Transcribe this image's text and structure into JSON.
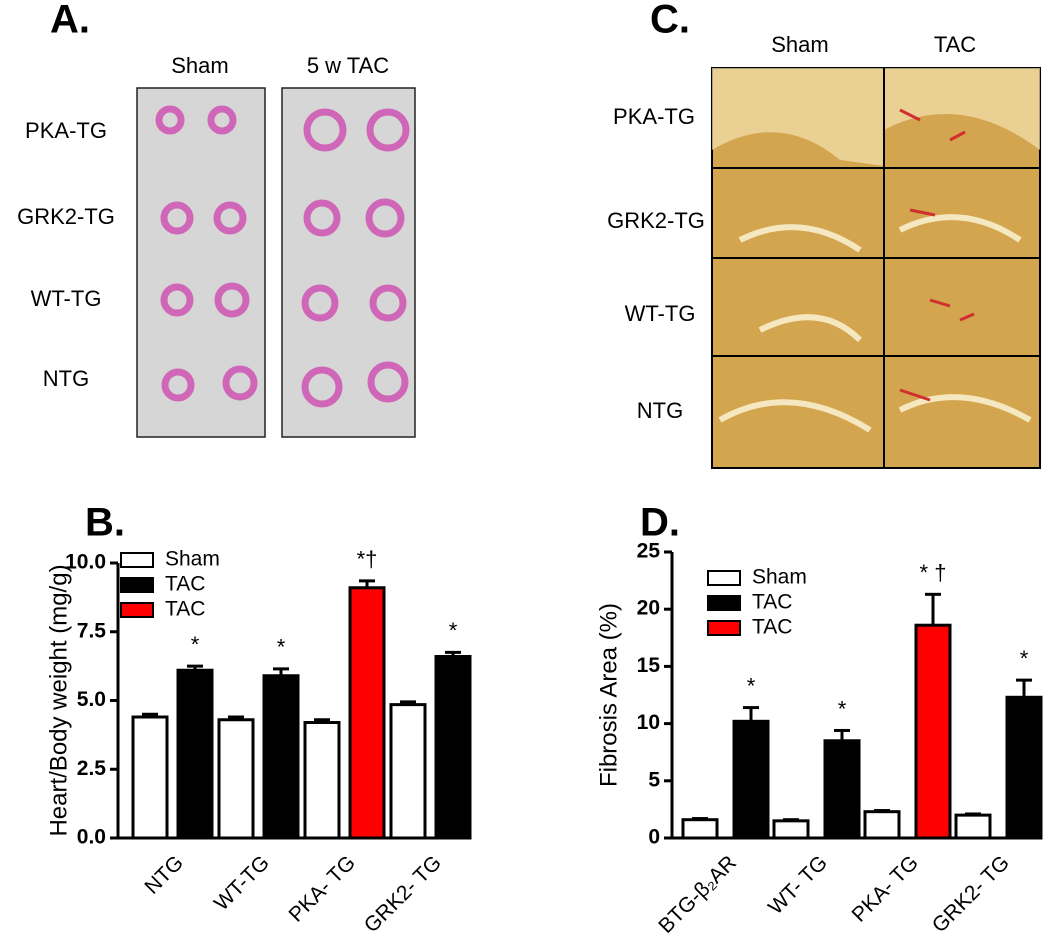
{
  "panel_a": {
    "label": "A.",
    "columns": [
      "Sham",
      "5 w TAC"
    ],
    "rows": [
      "PKA-TG",
      "GRK2-TG",
      "WT-TG",
      "NTG"
    ]
  },
  "panel_c": {
    "label": "C.",
    "columns": [
      "Sham",
      "TAC"
    ],
    "rows": [
      "PKA-TG",
      "GRK2-TG",
      "WT-TG",
      "NTG"
    ]
  },
  "chart_data": [
    {
      "type": "bar",
      "title": "B.",
      "y_label": "Heart/Body weight (mg/g)",
      "categories": [
        "NTG",
        "WT-TG",
        "PKA- TG",
        "GRK2- TG"
      ],
      "category_colors": [
        "#000000",
        "#000000",
        "#e8231b",
        "#000000"
      ],
      "series": [
        {
          "name": "Sham",
          "color": "#ffffff",
          "values": [
            4.4,
            4.3,
            4.2,
            4.85
          ],
          "errors": [
            0.1,
            0.1,
            0.1,
            0.1
          ],
          "annotations": [
            null,
            null,
            null,
            null
          ]
        },
        {
          "name": "TAC",
          "color": "#000000",
          "values": [
            6.1,
            5.9,
            null,
            6.6
          ],
          "errors": [
            0.15,
            0.25,
            null,
            0.15
          ],
          "annotations": [
            "*",
            "*",
            null,
            "*"
          ]
        },
        {
          "name": "TAC",
          "color": "#ff0000",
          "values": [
            null,
            null,
            9.1,
            null
          ],
          "errors": [
            null,
            null,
            0.25,
            null
          ],
          "annotations": [
            null,
            null,
            "*†",
            null
          ]
        }
      ],
      "ylim": [
        0,
        10
      ],
      "yticks": [
        {
          "value": 0,
          "label": "0.0"
        },
        {
          "value": 2.5,
          "label": "2.5"
        },
        {
          "value": 5,
          "label": "5.0"
        },
        {
          "value": 7.5,
          "label": "7.5"
        },
        {
          "value": 10,
          "label": "10.0"
        }
      ]
    },
    {
      "type": "bar",
      "title": "D.",
      "y_label": "Fibrosis Area (%)",
      "categories": [
        "BTG-β₂AR",
        "WT- TG",
        "PKA- TG",
        "GRK2- TG"
      ],
      "category_colors": [
        "#000000",
        "#000000",
        "#e8231b",
        "#000000"
      ],
      "series": [
        {
          "name": "Sham",
          "color": "#ffffff",
          "values": [
            1.6,
            1.5,
            2.3,
            2.0
          ],
          "errors": [
            0.1,
            0.1,
            0.1,
            0.1
          ],
          "annotations": [
            null,
            null,
            null,
            null
          ]
        },
        {
          "name": "TAC",
          "color": "#000000",
          "values": [
            10.2,
            8.5,
            null,
            12.3
          ],
          "errors": [
            1.2,
            0.9,
            null,
            1.5
          ],
          "annotations": [
            "*",
            "*",
            null,
            "*"
          ]
        },
        {
          "name": "TAC",
          "color": "#ff0000",
          "values": [
            null,
            null,
            18.6,
            null
          ],
          "errors": [
            null,
            null,
            2.7,
            null
          ],
          "annotations": [
            null,
            null,
            "* †",
            null
          ]
        }
      ],
      "ylim": [
        0,
        25
      ],
      "yticks": [
        0,
        5,
        10,
        15,
        20,
        25
      ]
    }
  ]
}
